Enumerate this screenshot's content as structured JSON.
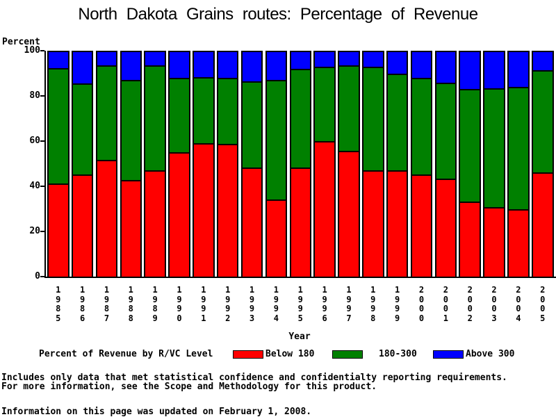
{
  "chart_data": {
    "type": "bar",
    "stacked": true,
    "title": "North Dakota Grains routes: Percentage of Revenue",
    "xlabel": "Year",
    "ylabel": "Percent",
    "ylim": [
      0,
      100
    ],
    "yticks": [
      0,
      20,
      40,
      60,
      80,
      100
    ],
    "grid": false,
    "legend_position": "bottom",
    "categories": [
      "1985",
      "1986",
      "1987",
      "1988",
      "1989",
      "1990",
      "1991",
      "1992",
      "1993",
      "1994",
      "1995",
      "1996",
      "1997",
      "1998",
      "1999",
      "2000",
      "2001",
      "2002",
      "2003",
      "2004",
      "2005"
    ],
    "series": [
      {
        "name": "Below 180",
        "color": "#ff0000",
        "values": [
          41.5,
          45.5,
          52,
          43,
          47.5,
          55.5,
          59.5,
          59,
          48.5,
          34.5,
          48.5,
          60.5,
          56,
          47.5,
          47.5,
          45.5,
          43.5,
          33.5,
          31,
          30,
          46.5
        ]
      },
      {
        "name": "180-300",
        "color": "#008000",
        "values": [
          51.5,
          40.5,
          42,
          44.5,
          46.5,
          33,
          29.5,
          29.5,
          38.5,
          53,
          44,
          33,
          38,
          46,
          43,
          43,
          43,
          50,
          53,
          54.5,
          45.5
        ]
      },
      {
        "name": "Above 300",
        "color": "#0000ff",
        "values": [
          7,
          14,
          6,
          12.5,
          6,
          11.5,
          11,
          11.5,
          13,
          12.5,
          7.5,
          6.5,
          6,
          6.5,
          9.5,
          11.5,
          13.5,
          16.5,
          16,
          15.5,
          8
        ]
      }
    ]
  },
  "legend": {
    "title": "Percent of Revenue by R/VC Level",
    "items": [
      {
        "label": "Below 180",
        "color": "#ff0000"
      },
      {
        "label": "180-300",
        "color": "#008000"
      },
      {
        "label": "Above 300",
        "color": "#0000ff"
      }
    ]
  },
  "footnotes": {
    "line1": "Includes only data that met statistical confidence and confidentialty reporting requirements.",
    "line2": "For more information, see the Scope and Methodology for this product.",
    "updated": "Information on this page was updated on February 1, 2008."
  }
}
